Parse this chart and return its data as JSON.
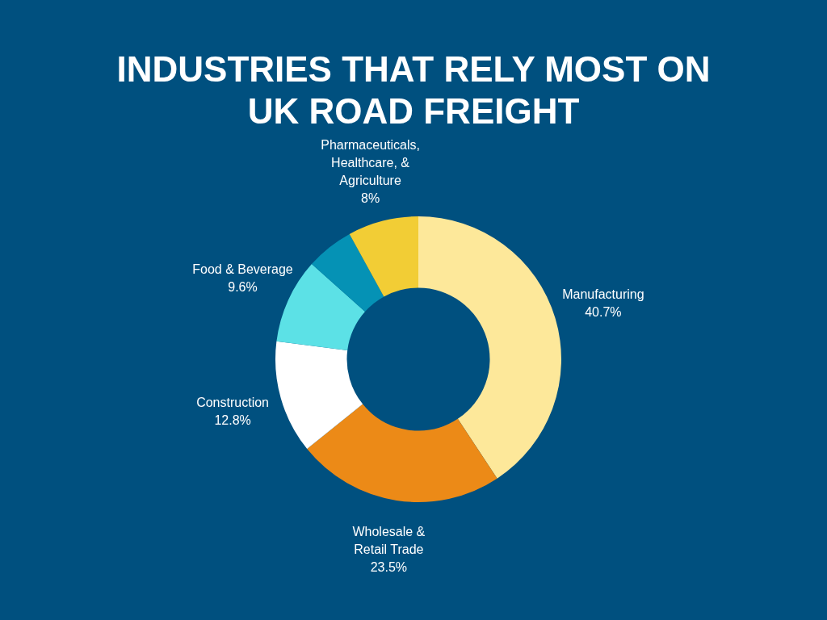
{
  "chart_data": {
    "type": "donut",
    "title": "INDUSTRIES THAT RELY MOST ON UK ROAD FREIGHT",
    "categories": [
      "Manufacturing",
      "Wholesale & Retail Trade",
      "Construction",
      "Food & Beverage",
      null,
      "Pharmaceuticals, Healthcare, & Agriculture"
    ],
    "values": [
      40.7,
      23.5,
      12.8,
      9.6,
      5.4,
      8
    ],
    "value_labels": [
      "40.7%",
      "23.5%",
      "12.8%",
      "9.6%",
      null,
      "8%"
    ],
    "colors": [
      "#fde89a",
      "#ec8a17",
      "#ffffff",
      "#5ce1e6",
      "#0592b5",
      "#f2cd35"
    ],
    "legend": false
  }
}
